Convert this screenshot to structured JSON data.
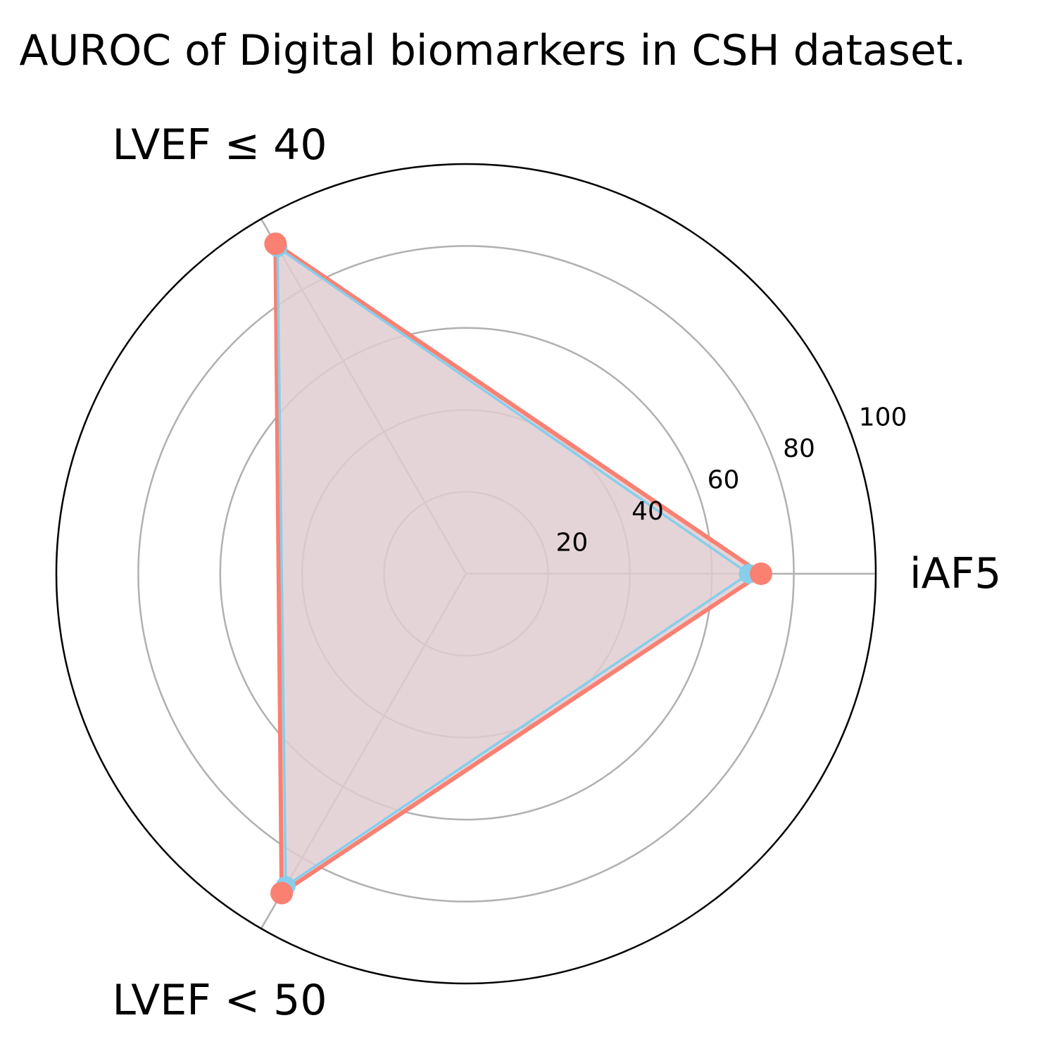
{
  "chart_data": {
    "type": "radar",
    "title": "AUROC of Digital biomarkers in CSH dataset.",
    "categories": [
      "iAF5",
      "LVEF ≤ 40",
      "LVEF < 50"
    ],
    "r_ticks": [
      20,
      40,
      60,
      80,
      100
    ],
    "rlim": [
      0,
      100
    ],
    "grid": true,
    "legend": "none",
    "series": [
      {
        "values": [
          72,
          93,
          90
        ],
        "line_color": "#fa8072",
        "marker_color": "#fa8072"
      },
      {
        "values": [
          69,
          92,
          88
        ],
        "line_color": "#87ceeb",
        "marker_color": "#87ceeb"
      }
    ],
    "fill_color": "#e1cdd0",
    "grid_color": "#b0b0b0"
  }
}
